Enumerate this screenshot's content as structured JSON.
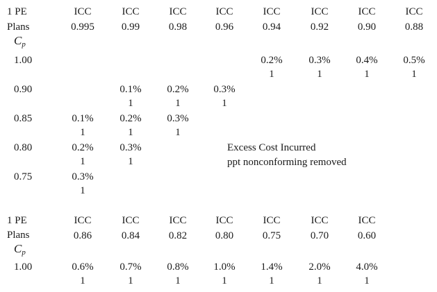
{
  "table1": {
    "header_plans": "1 PE",
    "header_plans2": "Plans",
    "cp_base": "C",
    "cp_sub": "p",
    "columns": [
      {
        "label": "ICC",
        "value": "0.995"
      },
      {
        "label": "ICC",
        "value": "0.99"
      },
      {
        "label": "ICC",
        "value": "0.98"
      },
      {
        "label": "ICC",
        "value": "0.96"
      },
      {
        "label": "ICC",
        "value": "0.94"
      },
      {
        "label": "ICC",
        "value": "0.92"
      },
      {
        "label": "ICC",
        "value": "0.90"
      },
      {
        "label": "ICC",
        "value": "0.88"
      }
    ],
    "rows": [
      {
        "cp": "1.00",
        "cells": [
          null,
          null,
          null,
          null,
          {
            "pct": "0.2%",
            "n": "1"
          },
          {
            "pct": "0.3%",
            "n": "1"
          },
          {
            "pct": "0.4%",
            "n": "1"
          },
          {
            "pct": "0.5%",
            "n": "1"
          }
        ]
      },
      {
        "cp": "0.90",
        "cells": [
          null,
          {
            "pct": "0.1%",
            "n": "1"
          },
          {
            "pct": "0.2%",
            "n": "1"
          },
          {
            "pct": "0.3%",
            "n": "1"
          },
          null,
          null,
          null,
          null
        ]
      },
      {
        "cp": "0.85",
        "cells": [
          {
            "pct": "0.1%",
            "n": "1"
          },
          {
            "pct": "0.2%",
            "n": "1"
          },
          {
            "pct": "0.3%",
            "n": "1"
          },
          null,
          null,
          null,
          null,
          null
        ]
      },
      {
        "cp": "0.80",
        "cells": [
          {
            "pct": "0.2%",
            "n": "1"
          },
          {
            "pct": "0.3%",
            "n": "1"
          },
          null,
          null,
          null,
          null,
          null,
          null
        ]
      },
      {
        "cp": "0.75",
        "cells": [
          {
            "pct": "0.3%",
            "n": "1"
          },
          null,
          null,
          null,
          null,
          null,
          null,
          null
        ]
      }
    ],
    "note_line1": "Excess Cost Incurred",
    "note_line2": "ppt nonconforming removed"
  },
  "table2": {
    "header_plans": "1 PE",
    "header_plans2": "Plans",
    "cp_base": "C",
    "cp_sub": "p",
    "columns": [
      {
        "label": "ICC",
        "value": "0.86"
      },
      {
        "label": "ICC",
        "value": "0.84"
      },
      {
        "label": "ICC",
        "value": "0.82"
      },
      {
        "label": "ICC",
        "value": "0.80"
      },
      {
        "label": "ICC",
        "value": "0.75"
      },
      {
        "label": "ICC",
        "value": "0.70"
      },
      {
        "label": "ICC",
        "value": "0.60"
      }
    ],
    "rows": [
      {
        "cp": "1.00",
        "cells": [
          {
            "pct": "0.6%",
            "n": "1"
          },
          {
            "pct": "0.7%",
            "n": "1"
          },
          {
            "pct": "0.8%",
            "n": "1"
          },
          {
            "pct": "1.0%",
            "n": "1"
          },
          {
            "pct": "1.4%",
            "n": "1"
          },
          {
            "pct": "2.0%",
            "n": "1"
          },
          {
            "pct": "4.0%",
            "n": "1"
          }
        ]
      }
    ]
  }
}
